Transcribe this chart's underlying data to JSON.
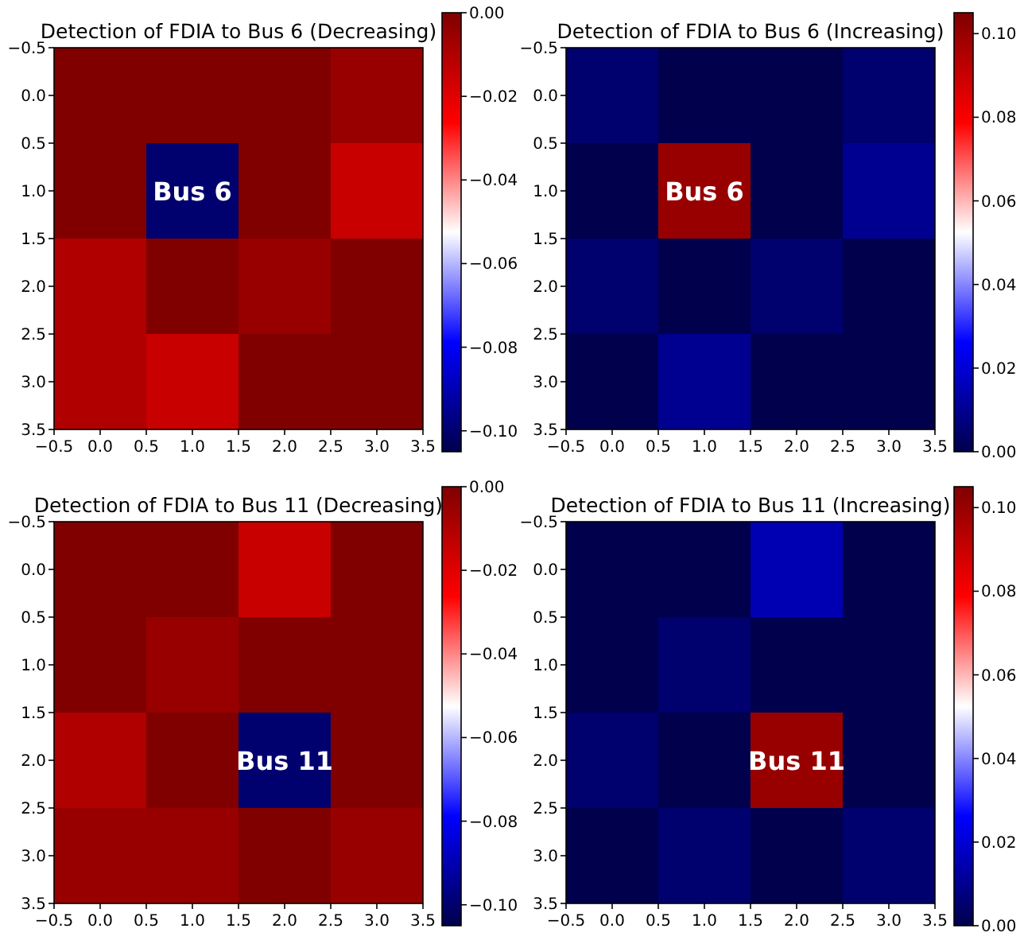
{
  "chart_data": [
    {
      "type": "heatmap",
      "title": "Detection of FDIA to Bus 6 (Decreasing)",
      "cells": [
        [
          0,
          0,
          0,
          -0.005
        ],
        [
          0,
          -0.1,
          0,
          -0.015
        ],
        [
          -0.01,
          0,
          -0.005,
          0
        ],
        [
          -0.01,
          -0.015,
          0,
          0
        ]
      ],
      "clim": [
        -0.105,
        0
      ],
      "cticks": [
        {
          "value": 0,
          "label": "0.00"
        },
        {
          "value": -0.02,
          "label": "−0.02"
        },
        {
          "value": -0.04,
          "label": "−0.04"
        },
        {
          "value": -0.06,
          "label": "−0.06"
        },
        {
          "value": -0.08,
          "label": "−0.08"
        },
        {
          "value": -0.1,
          "label": "−0.10"
        }
      ],
      "xlim": [
        -0.5,
        3.5
      ],
      "ylim": [
        3.5,
        -0.5
      ],
      "xticks": [
        {
          "value": -0.5,
          "label": "−0.5"
        },
        {
          "value": 0,
          "label": "0.0"
        },
        {
          "value": 0.5,
          "label": "0.5"
        },
        {
          "value": 1,
          "label": "1.0"
        },
        {
          "value": 1.5,
          "label": "1.5"
        },
        {
          "value": 2,
          "label": "2.0"
        },
        {
          "value": 2.5,
          "label": "2.5"
        },
        {
          "value": 3,
          "label": "3.0"
        },
        {
          "value": 3.5,
          "label": "3.5"
        }
      ],
      "yticks": [
        {
          "value": -0.5,
          "label": "−0.5"
        },
        {
          "value": 0,
          "label": "0.0"
        },
        {
          "value": 0.5,
          "label": "0.5"
        },
        {
          "value": 1,
          "label": "1.0"
        },
        {
          "value": 1.5,
          "label": "1.5"
        },
        {
          "value": 2,
          "label": "2.0"
        },
        {
          "value": 2.5,
          "label": "2.5"
        },
        {
          "value": 3,
          "label": "3.0"
        },
        {
          "value": 3.5,
          "label": "3.5"
        }
      ],
      "annotations": [
        "Bus 6"
      ]
    },
    {
      "type": "heatmap",
      "title": "Detection of FDIA to Bus 6 (Increasing)",
      "cells": [
        [
          0.005,
          0,
          0,
          0.005
        ],
        [
          0,
          0.1,
          0,
          0.01
        ],
        [
          0.005,
          0,
          0.005,
          0
        ],
        [
          0,
          0.01,
          0,
          0
        ]
      ],
      "clim": [
        0,
        0.105
      ],
      "cticks": [
        {
          "value": 0,
          "label": "0.00"
        },
        {
          "value": 0.02,
          "label": "0.02"
        },
        {
          "value": 0.04,
          "label": "0.04"
        },
        {
          "value": 0.06,
          "label": "0.06"
        },
        {
          "value": 0.08,
          "label": "0.08"
        },
        {
          "value": 0.1,
          "label": "0.10"
        }
      ],
      "xlim": [
        -0.5,
        3.5
      ],
      "ylim": [
        3.5,
        -0.5
      ],
      "xticks": [
        {
          "value": -0.5,
          "label": "−0.5"
        },
        {
          "value": 0,
          "label": "0.0"
        },
        {
          "value": 0.5,
          "label": "0.5"
        },
        {
          "value": 1,
          "label": "1.0"
        },
        {
          "value": 1.5,
          "label": "1.5"
        },
        {
          "value": 2,
          "label": "2.0"
        },
        {
          "value": 2.5,
          "label": "2.5"
        },
        {
          "value": 3,
          "label": "3.0"
        },
        {
          "value": 3.5,
          "label": "3.5"
        }
      ],
      "yticks": [
        {
          "value": -0.5,
          "label": "−0.5"
        },
        {
          "value": 0,
          "label": "0.0"
        },
        {
          "value": 0.5,
          "label": "0.5"
        },
        {
          "value": 1,
          "label": "1.0"
        },
        {
          "value": 1.5,
          "label": "1.5"
        },
        {
          "value": 2,
          "label": "2.0"
        },
        {
          "value": 2.5,
          "label": "2.5"
        },
        {
          "value": 3,
          "label": "3.0"
        },
        {
          "value": 3.5,
          "label": "3.5"
        }
      ],
      "annotations": [
        "Bus 6"
      ]
    },
    {
      "type": "heatmap",
      "title": "Detection of FDIA to Bus 11 (Decreasing)",
      "cells": [
        [
          0,
          0,
          -0.015,
          0
        ],
        [
          0,
          -0.005,
          0,
          0
        ],
        [
          -0.01,
          0,
          -0.1,
          0
        ],
        [
          -0.005,
          -0.005,
          0,
          -0.005
        ]
      ],
      "clim": [
        -0.105,
        0
      ],
      "cticks": [
        {
          "value": 0,
          "label": "0.00"
        },
        {
          "value": -0.02,
          "label": "−0.02"
        },
        {
          "value": -0.04,
          "label": "−0.04"
        },
        {
          "value": -0.06,
          "label": "−0.06"
        },
        {
          "value": -0.08,
          "label": "−0.08"
        },
        {
          "value": -0.1,
          "label": "−0.10"
        }
      ],
      "xlim": [
        -0.5,
        3.5
      ],
      "ylim": [
        3.5,
        -0.5
      ],
      "xticks": [
        {
          "value": -0.5,
          "label": "−0.5"
        },
        {
          "value": 0,
          "label": "0.0"
        },
        {
          "value": 0.5,
          "label": "0.5"
        },
        {
          "value": 1,
          "label": "1.0"
        },
        {
          "value": 1.5,
          "label": "1.5"
        },
        {
          "value": 2,
          "label": "2.0"
        },
        {
          "value": 2.5,
          "label": "2.5"
        },
        {
          "value": 3,
          "label": "3.0"
        },
        {
          "value": 3.5,
          "label": "3.5"
        }
      ],
      "yticks": [
        {
          "value": -0.5,
          "label": "−0.5"
        },
        {
          "value": 0,
          "label": "0.0"
        },
        {
          "value": 0.5,
          "label": "0.5"
        },
        {
          "value": 1,
          "label": "1.0"
        },
        {
          "value": 1.5,
          "label": "1.5"
        },
        {
          "value": 2,
          "label": "2.0"
        },
        {
          "value": 2.5,
          "label": "2.5"
        },
        {
          "value": 3,
          "label": "3.0"
        },
        {
          "value": 3.5,
          "label": "3.5"
        }
      ],
      "annotations": [
        "Bus 11"
      ]
    },
    {
      "type": "heatmap",
      "title": "Detection of FDIA to Bus 11 (Increasing)",
      "cells": [
        [
          0,
          0,
          0.015,
          0
        ],
        [
          0,
          0.005,
          0,
          0
        ],
        [
          0.005,
          0,
          0.1,
          0
        ],
        [
          0,
          0.005,
          0,
          0.005
        ]
      ],
      "clim": [
        0,
        0.105
      ],
      "cticks": [
        {
          "value": 0,
          "label": "0.00"
        },
        {
          "value": 0.02,
          "label": "0.02"
        },
        {
          "value": 0.04,
          "label": "0.04"
        },
        {
          "value": 0.06,
          "label": "0.06"
        },
        {
          "value": 0.08,
          "label": "0.08"
        },
        {
          "value": 0.1,
          "label": "0.10"
        }
      ],
      "xlim": [
        -0.5,
        3.5
      ],
      "ylim": [
        3.5,
        -0.5
      ],
      "xticks": [
        {
          "value": -0.5,
          "label": "−0.5"
        },
        {
          "value": 0,
          "label": "0.0"
        },
        {
          "value": 0.5,
          "label": "0.5"
        },
        {
          "value": 1,
          "label": "1.0"
        },
        {
          "value": 1.5,
          "label": "1.5"
        },
        {
          "value": 2,
          "label": "2.0"
        },
        {
          "value": 2.5,
          "label": "2.5"
        },
        {
          "value": 3,
          "label": "3.0"
        },
        {
          "value": 3.5,
          "label": "3.5"
        }
      ],
      "yticks": [
        {
          "value": -0.5,
          "label": "−0.5"
        },
        {
          "value": 0,
          "label": "0.0"
        },
        {
          "value": 0.5,
          "label": "0.5"
        },
        {
          "value": 1,
          "label": "1.0"
        },
        {
          "value": 1.5,
          "label": "1.5"
        },
        {
          "value": 2,
          "label": "2.0"
        },
        {
          "value": 2.5,
          "label": "2.5"
        },
        {
          "value": 3,
          "label": "3.0"
        },
        {
          "value": 3.5,
          "label": "3.5"
        }
      ],
      "annotations": [
        "Bus 11"
      ]
    }
  ]
}
